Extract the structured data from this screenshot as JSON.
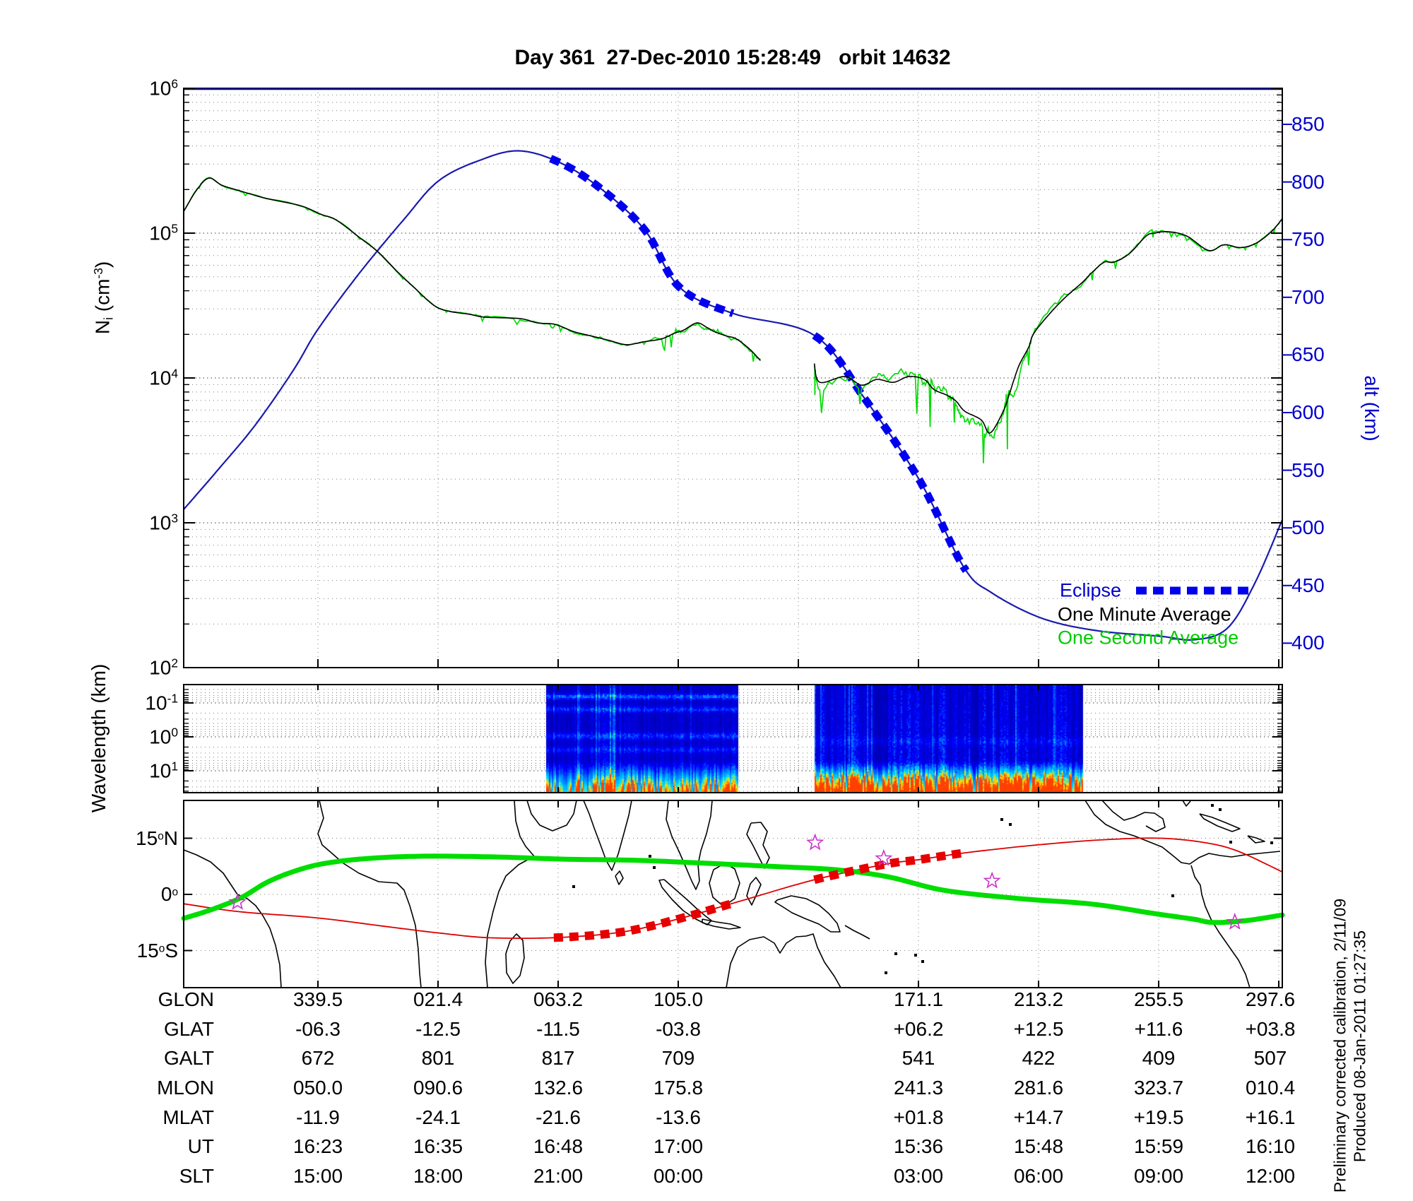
{
  "title": "Day 361  27-Dec-2010 15:28:49   orbit 14632",
  "colors": {
    "alt_axis": "#0000cc",
    "alt_curve": "#1a1aae",
    "eclipse": "#0000ee",
    "one_minute_average": "#000000",
    "one_second_average": "#00dd00",
    "ground_track": "#dd0000",
    "eclipse_map": "#e60000",
    "mag_equator": "#00dd00",
    "stars": "#cc33cc"
  },
  "density_panel": {
    "y_axis": {
      "label": {
        "sym": "N",
        "sub": "i",
        "open": " (cm",
        "exp": "-3",
        "close": ")"
      },
      "tick_base": "10",
      "tick_exponents": [
        6,
        5,
        4,
        3,
        2
      ]
    },
    "alt_axis": {
      "label": "alt (km)",
      "ticks": [
        850,
        800,
        750,
        700,
        650,
        600,
        550,
        500,
        450,
        400
      ]
    },
    "legend": [
      {
        "label": "Eclipse"
      },
      {
        "label": "One Minute Average"
      },
      {
        "label": "One Second Average"
      }
    ]
  },
  "wavelength_panel": {
    "y_axis": {
      "label": "Wavelength (km)",
      "tick_base": "10",
      "tick_exponents": [
        -1,
        0,
        1
      ]
    }
  },
  "map_panel": {
    "lat_tick_labels": [
      {
        "num": "15",
        "deg": "o",
        "suffix": "N"
      },
      {
        "num": "0",
        "deg": "o",
        "suffix": ""
      },
      {
        "num": "15",
        "deg": "o",
        "suffix": "S"
      }
    ]
  },
  "table": {
    "rows": [
      {
        "label": "GLON",
        "values": [
          "339.5",
          "021.4",
          "063.2",
          "105.0",
          "171.1",
          "213.2",
          "255.5",
          "297.6"
        ]
      },
      {
        "label": "GLAT",
        "values": [
          "-06.3",
          "-12.5",
          "-11.5",
          "-03.8",
          "+06.2",
          "+12.5",
          "+11.6",
          "+03.8"
        ]
      },
      {
        "label": "GALT",
        "values": [
          "672",
          "801",
          "817",
          "709",
          "541",
          "422",
          "409",
          "507"
        ]
      },
      {
        "label": "MLON",
        "values": [
          "050.0",
          "090.6",
          "132.6",
          "175.8",
          "241.3",
          "281.6",
          "323.7",
          "010.4"
        ]
      },
      {
        "label": "MLAT",
        "values": [
          "-11.9",
          "-24.1",
          "-21.6",
          "-13.6",
          "+01.8",
          "+14.7",
          "+19.5",
          "+16.1"
        ]
      },
      {
        "label": "UT",
        "values": [
          "16:23",
          "16:35",
          "16:48",
          "17:00",
          "15:36",
          "15:48",
          "15:59",
          "16:10"
        ]
      },
      {
        "label": "SLT",
        "values": [
          "15:00",
          "18:00",
          "21:00",
          "00:00",
          "03:00",
          "06:00",
          "09:00",
          "12:00"
        ]
      }
    ]
  },
  "footer": {
    "line1": "Preliminary corrected calibration, 2/11/09",
    "line2": "Produced 08-Jan-2011 01:27:35"
  },
  "chart_data": {
    "type": "line",
    "title": "Day 361  27-Dec-2010 15:28:49   orbit 14632",
    "x_axis": "orbit track (UT / SLT per table columns)",
    "left_axis": {
      "label": "Ni (cm^-3)",
      "scale": "log10",
      "ylim_log10": [
        2,
        6
      ]
    },
    "right_axis": {
      "label": "alt (km)",
      "ylim": [
        385,
        890
      ],
      "ticks": [
        850,
        800,
        750,
        700,
        650,
        600,
        550,
        500,
        450,
        400
      ]
    },
    "altitude_series": {
      "name": "alt",
      "unit": "km",
      "points": [
        [
          0.0,
          516
        ],
        [
          0.03,
          549
        ],
        [
          0.065,
          589
        ],
        [
          0.1,
          637
        ],
        [
          0.122,
          672
        ],
        [
          0.16,
          721
        ],
        [
          0.2,
          767
        ],
        [
          0.232,
          801
        ],
        [
          0.27,
          819
        ],
        [
          0.305,
          827
        ],
        [
          0.342,
          817
        ],
        [
          0.38,
          794
        ],
        [
          0.42,
          758
        ],
        [
          0.451,
          709
        ],
        [
          0.5,
          686
        ],
        [
          0.574,
          667
        ],
        [
          0.62,
          612
        ],
        [
          0.67,
          541
        ],
        [
          0.71,
          466
        ],
        [
          0.735,
          444
        ],
        [
          0.78,
          422
        ],
        [
          0.83,
          411
        ],
        [
          0.889,
          406
        ],
        [
          0.92,
          403
        ],
        [
          0.95,
          413
        ],
        [
          0.975,
          452
        ],
        [
          1.0,
          507
        ]
      ],
      "eclipse_segments": [
        [
          0.333,
          0.5045
        ],
        [
          0.574,
          0.713
        ]
      ]
    },
    "density_series": {
      "name": "One Minute Average",
      "unit": "log10 cm^-3",
      "segments": [
        [
          [
            0.0,
            5.15
          ],
          [
            0.012,
            5.3
          ],
          [
            0.023,
            5.38
          ],
          [
            0.035,
            5.33
          ],
          [
            0.052,
            5.29
          ],
          [
            0.075,
            5.24
          ],
          [
            0.106,
            5.19
          ],
          [
            0.125,
            5.13
          ],
          [
            0.139,
            5.09
          ],
          [
            0.16,
            4.97
          ],
          [
            0.177,
            4.87
          ],
          [
            0.195,
            4.73
          ],
          [
            0.209,
            4.63
          ],
          [
            0.228,
            4.5
          ],
          [
            0.242,
            4.46
          ],
          [
            0.26,
            4.44
          ],
          [
            0.274,
            4.42
          ],
          [
            0.306,
            4.41
          ],
          [
            0.322,
            4.38
          ],
          [
            0.338,
            4.37
          ],
          [
            0.355,
            4.32
          ],
          [
            0.371,
            4.29
          ],
          [
            0.387,
            4.26
          ],
          [
            0.403,
            4.23
          ],
          [
            0.419,
            4.25
          ],
          [
            0.435,
            4.27
          ],
          [
            0.447,
            4.31
          ],
          [
            0.455,
            4.33
          ],
          [
            0.467,
            4.38
          ],
          [
            0.476,
            4.35
          ],
          [
            0.483,
            4.32
          ],
          [
            0.494,
            4.29
          ],
          [
            0.503,
            4.27
          ],
          [
            0.515,
            4.2
          ],
          [
            0.525,
            4.12
          ]
        ],
        [
          [
            0.574,
            4.1
          ],
          [
            0.579,
            3.97
          ],
          [
            0.602,
            4.01
          ],
          [
            0.617,
            3.95
          ],
          [
            0.631,
            3.99
          ],
          [
            0.646,
            3.97
          ],
          [
            0.66,
            4.01
          ],
          [
            0.674,
            3.99
          ],
          [
            0.683,
            3.92
          ],
          [
            0.695,
            3.88
          ],
          [
            0.703,
            3.84
          ],
          [
            0.711,
            3.77
          ],
          [
            0.726,
            3.71
          ],
          [
            0.734,
            3.62
          ],
          [
            0.746,
            3.77
          ],
          [
            0.752,
            3.9
          ],
          [
            0.76,
            4.08
          ],
          [
            0.769,
            4.21
          ],
          [
            0.774,
            4.31
          ],
          [
            0.789,
            4.45
          ],
          [
            0.803,
            4.56
          ],
          [
            0.818,
            4.66
          ],
          [
            0.827,
            4.73
          ],
          [
            0.838,
            4.8
          ],
          [
            0.847,
            4.8
          ],
          [
            0.861,
            4.86
          ],
          [
            0.876,
            4.98
          ],
          [
            0.884,
            5.0
          ],
          [
            0.896,
            5.01
          ],
          [
            0.913,
            4.98
          ],
          [
            0.933,
            4.88
          ],
          [
            0.947,
            4.92
          ],
          [
            0.962,
            4.9
          ],
          [
            0.976,
            4.93
          ],
          [
            0.99,
            5.01
          ],
          [
            1.0,
            5.1
          ]
        ]
      ],
      "one_second_average": "same data plus high-frequency noise / depletions",
      "noise_regions": [
        {
          "f": [
            0.0,
            0.27
          ],
          "amp_log10": 0.01
        },
        {
          "f": [
            0.27,
            0.42
          ],
          "amp_log10": 0.02
        },
        {
          "f": [
            0.42,
            0.53
          ],
          "amp_log10": 0.04
        },
        {
          "f": [
            0.57,
            0.66
          ],
          "amp_log10": 0.11
        },
        {
          "f": [
            0.66,
            0.76
          ],
          "amp_log10": 0.15
        },
        {
          "f": [
            0.76,
            0.82
          ],
          "amp_log10": 0.055
        },
        {
          "f": [
            0.82,
            0.9
          ],
          "amp_log10": 0.025
        },
        {
          "f": [
            0.9,
            1.0
          ],
          "amp_log10": 0.012
        }
      ]
    },
    "spectrogram": {
      "y_axis": "Wavelength (km), log inverted 0.03 - 45",
      "blocks": [
        [
          0.33,
          0.505
        ],
        [
          0.574,
          0.818
        ]
      ],
      "palette": [
        "#000080",
        "#0000ff",
        "#0080ff",
        "#00e0ff",
        "#ffe000",
        "#ff4000"
      ]
    },
    "map": {
      "lat_range": [
        -25,
        25
      ],
      "lat_gridlines": [
        15,
        0,
        -15
      ],
      "ground_track_lat": [
        [
          0.0,
          -2.5
        ],
        [
          0.05,
          -4.6
        ],
        [
          0.122,
          -6.3
        ],
        [
          0.19,
          -8.8
        ],
        [
          0.232,
          -10.3
        ],
        [
          0.28,
          -11.6
        ],
        [
          0.342,
          -11.5
        ],
        [
          0.4,
          -10.0
        ],
        [
          0.451,
          -6.5
        ],
        [
          0.51,
          -1.5
        ],
        [
          0.574,
          3.9
        ],
        [
          0.638,
          8.0
        ],
        [
          0.67,
          9.3
        ],
        [
          0.714,
          11.2
        ],
        [
          0.78,
          13.3
        ],
        [
          0.838,
          14.6
        ],
        [
          0.889,
          15.0
        ],
        [
          0.93,
          13.8
        ],
        [
          0.96,
          11.5
        ],
        [
          1.0,
          6.0
        ]
      ],
      "eclipse_segments": [
        [
          0.333,
          0.5045
        ],
        [
          0.574,
          0.713
        ]
      ],
      "mag_equator_lat": [
        [
          0.0,
          -6.4
        ],
        [
          0.026,
          -4.0
        ],
        [
          0.052,
          -0.9
        ],
        [
          0.077,
          3.4
        ],
        [
          0.103,
          6.4
        ],
        [
          0.129,
          8.3
        ],
        [
          0.168,
          9.6
        ],
        [
          0.219,
          10.2
        ],
        [
          0.284,
          10.0
        ],
        [
          0.348,
          9.4
        ],
        [
          0.412,
          9.1
        ],
        [
          0.477,
          8.3
        ],
        [
          0.541,
          7.4
        ],
        [
          0.593,
          6.6
        ],
        [
          0.641,
          4.7
        ],
        [
          0.692,
          1.1
        ],
        [
          0.76,
          -1.1
        ],
        [
          0.827,
          -2.6
        ],
        [
          0.883,
          -5.1
        ],
        [
          0.919,
          -6.6
        ],
        [
          0.937,
          -7.5
        ],
        [
          0.967,
          -7.0
        ],
        [
          1.0,
          -5.5
        ]
      ],
      "stars": [
        [
          0.049,
          -2.1
        ],
        [
          0.5747,
          13.8
        ],
        [
          0.6372,
          9.6
        ],
        [
          0.7358,
          3.6
        ],
        [
          0.9568,
          -7.4
        ]
      ]
    }
  }
}
